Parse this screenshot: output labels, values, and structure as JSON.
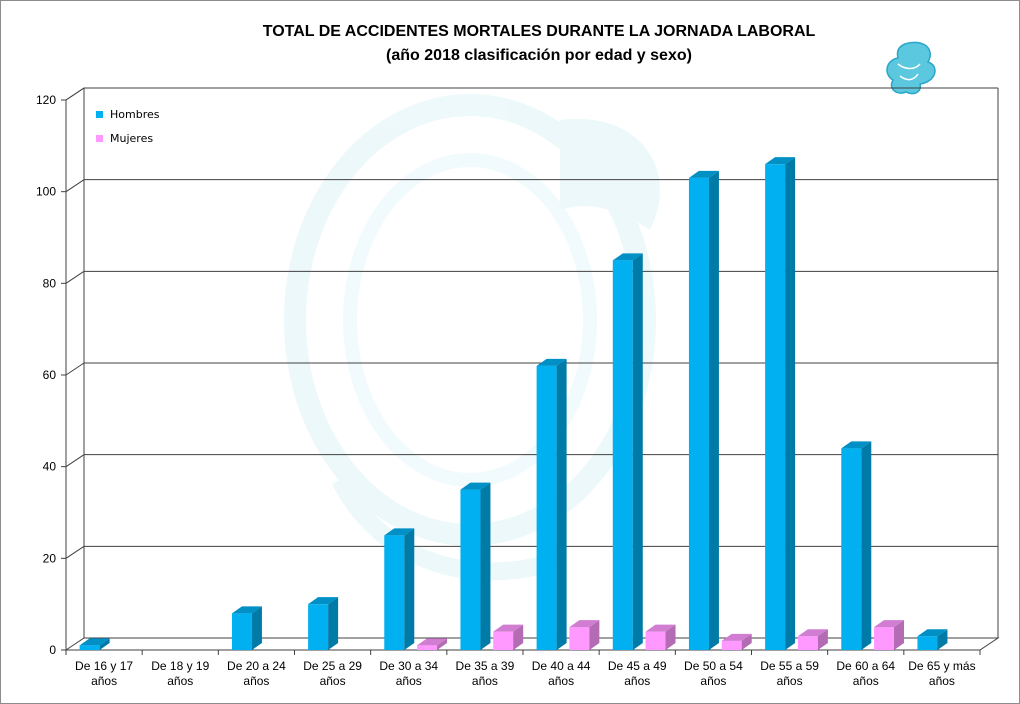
{
  "chart_data": {
    "type": "bar",
    "title": "TOTAL DE ACCIDENTES MORTALES DURANTE LA JORNADA LABORAL",
    "subtitle": "(año 2018 clasificación por edad y sexo)",
    "categories": [
      [
        "De 16 y 17",
        "años"
      ],
      [
        "De 18 y 19",
        "años"
      ],
      [
        "De 20 a 24",
        "años"
      ],
      [
        "De 25 a 29",
        "años"
      ],
      [
        "De 30 a 34",
        "años"
      ],
      [
        "De 35 a 39",
        "años"
      ],
      [
        "De 40 a 44",
        "años"
      ],
      [
        "De 45 a 49",
        "años"
      ],
      [
        "De 50 a 54",
        "años"
      ],
      [
        "De 55 a 59",
        "años"
      ],
      [
        "De 60 a 64",
        "años"
      ],
      [
        "De 65 y más",
        "años"
      ]
    ],
    "series": [
      {
        "name": "Hombres",
        "color": "#00b0f0",
        "values": [
          1,
          0,
          8,
          10,
          25,
          35,
          62,
          85,
          103,
          106,
          44,
          3
        ]
      },
      {
        "name": "Mujeres",
        "color": "#ff99ff",
        "values": [
          0,
          0,
          0,
          0,
          1,
          4,
          5,
          4,
          2,
          3,
          5,
          0
        ]
      }
    ],
    "yticks": [
      0,
      20,
      40,
      60,
      80,
      100,
      120
    ],
    "ylim": [
      0,
      120
    ],
    "grid": true,
    "legend_position": "top-left",
    "style": "3d-column",
    "watermark": "eagle-emblem"
  }
}
